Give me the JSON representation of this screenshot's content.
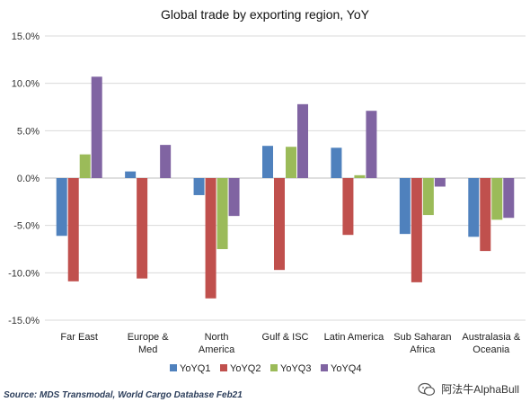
{
  "chart_data": {
    "type": "bar",
    "title": "Global trade by exporting region, YoY",
    "categories": [
      [
        "Far East"
      ],
      [
        "Europe &",
        "Med"
      ],
      [
        "North",
        "America"
      ],
      [
        "Gulf & ISC"
      ],
      [
        "Latin America"
      ],
      [
        "Sub Saharan",
        "Africa"
      ],
      [
        "Australasia &",
        "Oceania"
      ]
    ],
    "series": [
      {
        "name": "YoYQ1",
        "color": "#4f81bd",
        "values": [
          -6.1,
          0.7,
          -1.8,
          3.4,
          3.2,
          -5.9,
          -6.2
        ]
      },
      {
        "name": "YoYQ2",
        "color": "#c0504d",
        "values": [
          -10.9,
          -10.6,
          -12.7,
          -9.7,
          -6.0,
          -11.0,
          -7.7
        ]
      },
      {
        "name": "YoYQ3",
        "color": "#9bbb59",
        "values": [
          2.5,
          0.0,
          -7.5,
          3.3,
          0.3,
          -3.9,
          -4.4
        ]
      },
      {
        "name": "YoYQ4",
        "color": "#8064a2",
        "values": [
          10.7,
          3.5,
          -4.0,
          7.8,
          7.1,
          -0.9,
          -4.2
        ]
      }
    ],
    "yticks": [
      "15.0%",
      "10.0%",
      "5.0%",
      "0.0%",
      "-5.0%",
      "-10.0%",
      "-15.0%"
    ],
    "ylim": [
      -15,
      15
    ],
    "grid": true,
    "legend_position": "bottom"
  },
  "source_text": "Source: MDS Transmodal, World Cargo Database Feb21",
  "watermark_text": "阿法牛AlphaBull",
  "watermark_icon": "wechat-icon"
}
